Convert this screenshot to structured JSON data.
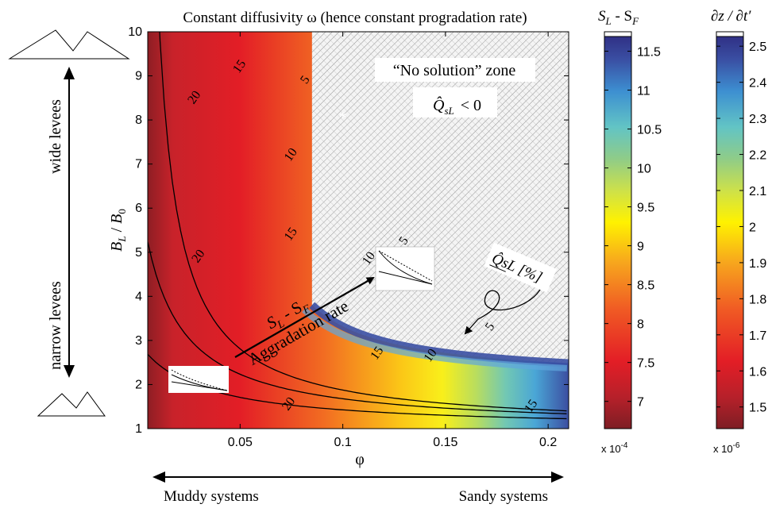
{
  "chart_data": [
    {
      "type": "heatmap",
      "title": "Constant diffusivity ω (hence constant progradation rate)",
      "xlabel": "φ",
      "ylabel_main": "B",
      "ylabel_sub": "L",
      "ylabel_div": " / ",
      "ylabel_main2": "B",
      "ylabel_sub2": "0",
      "xlim": [
        0.005,
        0.21
      ],
      "ylim": [
        1,
        10
      ],
      "x_ticks": [
        0.05,
        0.1,
        0.15,
        0.2
      ],
      "x_tick_labels": [
        "0.05",
        "0.1",
        "0.15",
        "0.2"
      ],
      "y_ticks": [
        1,
        2,
        3,
        4,
        5,
        6,
        7,
        8,
        9,
        10
      ],
      "y_tick_labels": [
        "1",
        "2",
        "3",
        "4",
        "5",
        "6",
        "7",
        "8",
        "9",
        "10"
      ],
      "contour_label_text": "Q̂sL [%]",
      "contour_levels": [
        {
          "level": 5,
          "label": "5",
          "label_positions": [
            [
              0.082,
              8.9
            ],
            [
              0.13,
              5.25
            ],
            [
              0.172,
              3.3
            ]
          ]
        },
        {
          "level": 10,
          "label": "10",
          "label_positions": [
            [
              0.075,
              7.2
            ],
            [
              0.113,
              4.85
            ],
            [
              0.143,
              2.65
            ]
          ]
        },
        {
          "level": 15,
          "label": "15",
          "label_positions": [
            [
              0.05,
              9.2
            ],
            [
              0.075,
              5.4
            ],
            [
              0.117,
              2.7
            ],
            [
              0.192,
              1.5
            ]
          ]
        },
        {
          "level": 20,
          "label": "20",
          "label_positions": [
            [
              0.028,
              8.5
            ],
            [
              0.03,
              4.9
            ],
            [
              0.074,
              1.55
            ]
          ]
        }
      ],
      "no_solution_zone": {
        "line1": "“No solution” zone",
        "line2_symbol": "Q̂",
        "line2_sub": "sL",
        "line2_rel": "< 0"
      },
      "marker": {
        "x": 0.1,
        "y": 8.1,
        "symbol": "*"
      },
      "arrow_annotation": {
        "line1": "S",
        "line1_sub1": "L",
        "line1_mid": " - S",
        "line1_sub2": "F",
        "line2": "Aggradation rate"
      },
      "left_annotation": {
        "top": "wide levees",
        "bottom": "narrow levees"
      },
      "bottom_annotation": {
        "left": "Muddy systems",
        "right": "Sandy systems"
      }
    },
    {
      "type": "heatmap",
      "role": "colorbar",
      "title_main": "S",
      "title_sub1": "L",
      "title_mid": " - S",
      "title_sub2": "F",
      "range": [
        6.65,
        11.75
      ],
      "ticks": [
        7,
        7.5,
        8,
        8.5,
        9,
        9.5,
        10,
        10.5,
        11,
        11.5
      ],
      "tick_labels": [
        "7",
        "7.5",
        "8",
        "8.5",
        "9",
        "9.5",
        "10",
        "10.5",
        "11",
        "11.5"
      ],
      "multiplier_base": "x 10",
      "multiplier_exp": "-4"
    },
    {
      "type": "heatmap",
      "role": "colorbar",
      "title": "∂z / ∂t′",
      "range": [
        1.44,
        2.54
      ],
      "ticks": [
        1.5,
        1.6,
        1.7,
        1.8,
        1.9,
        2,
        2.1,
        2.2,
        2.3,
        2.4,
        2.5
      ],
      "tick_labels": [
        "1.5",
        "1.6",
        "1.7",
        "1.8",
        "1.9",
        "2",
        "2.1",
        "2.2",
        "2.3",
        "2.4",
        "2.5"
      ],
      "multiplier_base": "x 10",
      "multiplier_exp": "-6"
    }
  ]
}
